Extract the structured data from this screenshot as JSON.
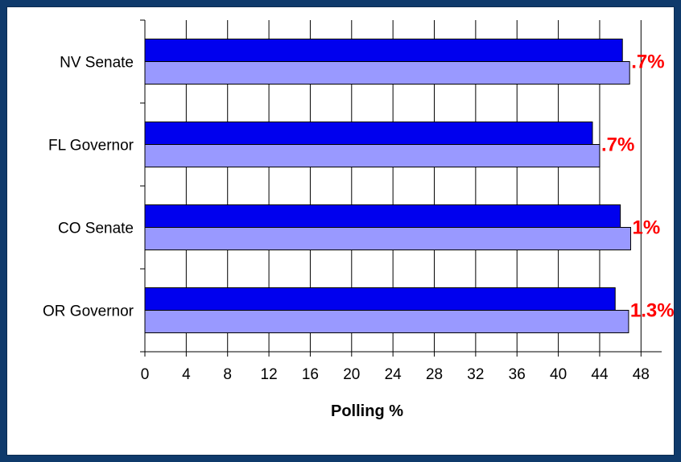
{
  "chart_data": {
    "type": "bar",
    "orientation": "horizontal",
    "categories": [
      "NV Senate",
      "FL Governor",
      "CO Senate",
      "OR Governor"
    ],
    "series": [
      {
        "values": [
          46.2,
          43.3,
          46.0,
          45.5
        ],
        "color": "#0000ee"
      },
      {
        "values": [
          46.9,
          44.0,
          47.0,
          46.8
        ],
        "color": "#9999ff"
      }
    ],
    "gap_labels": [
      ".7%",
      ".7%",
      "1%",
      "1.3%"
    ],
    "gap_label_color": "#ff0000",
    "xlabel": "Polling %",
    "ylabel": "",
    "xlim": [
      0,
      50
    ],
    "xticks": [
      0,
      4,
      8,
      12,
      16,
      20,
      24,
      28,
      32,
      36,
      40,
      44,
      48
    ],
    "grid": true
  },
  "colors": {
    "frame_background": "#0f3a6b",
    "plot_background": "#ffffff"
  }
}
